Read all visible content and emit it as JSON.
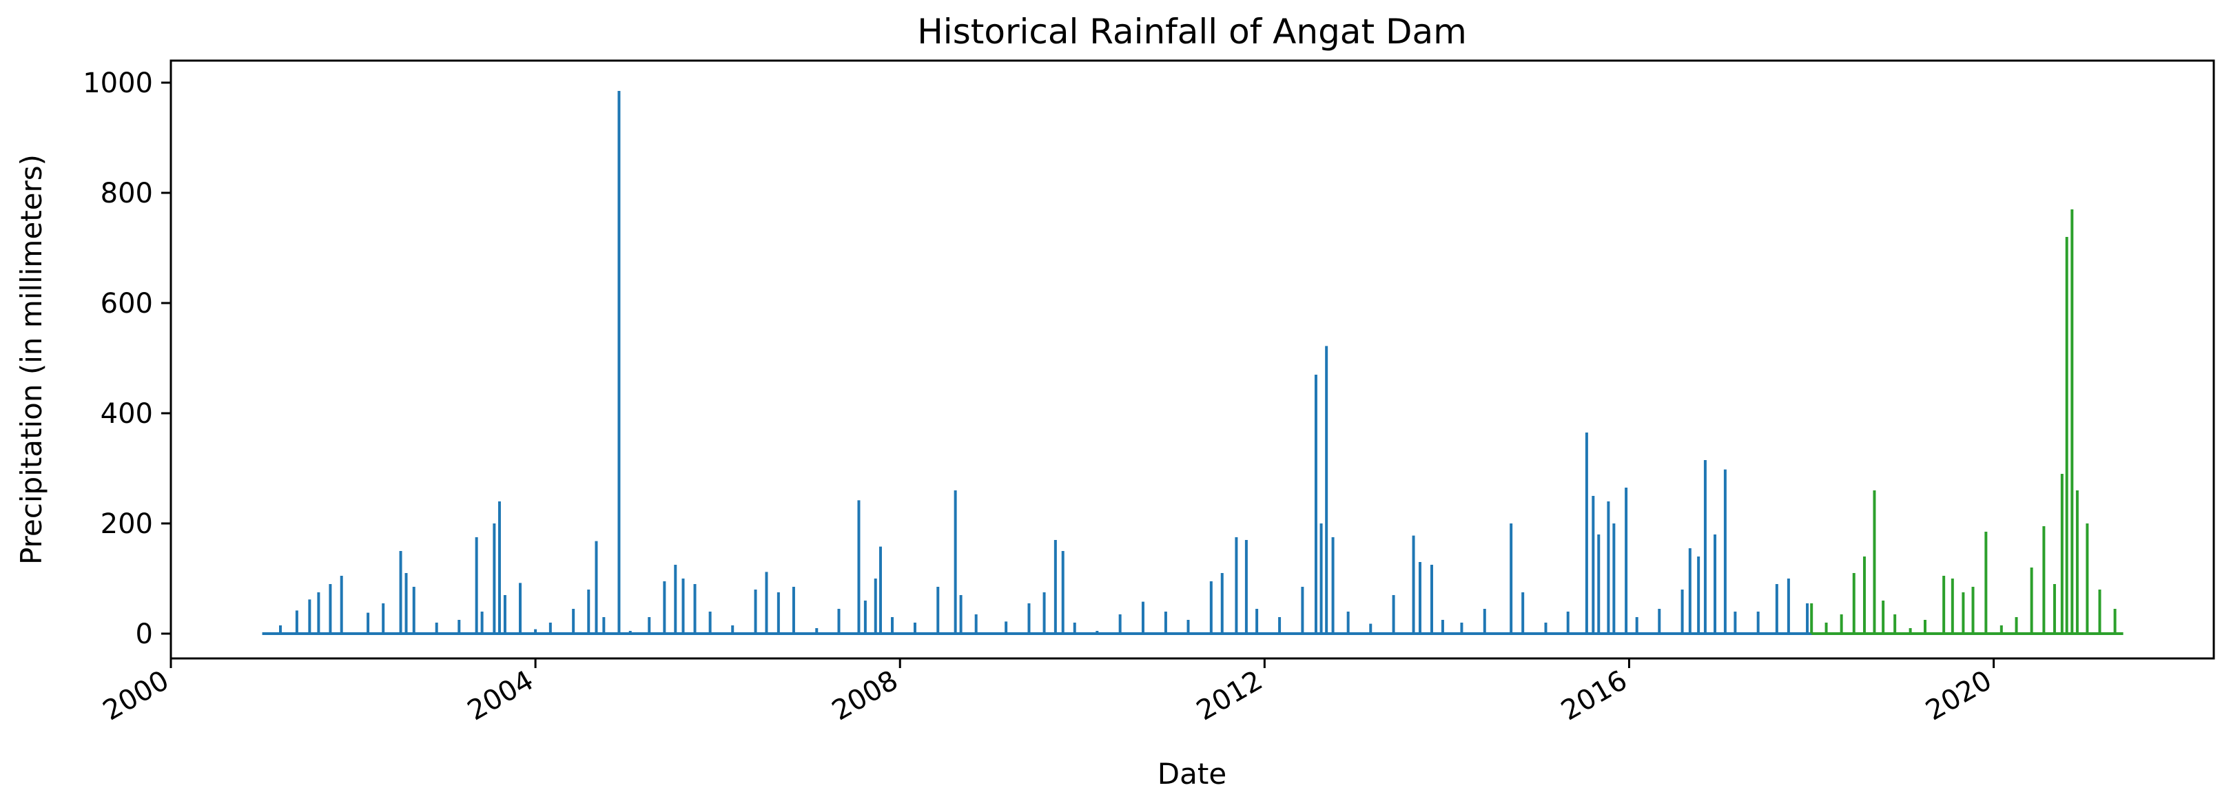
{
  "chart_data": {
    "type": "line",
    "title": "Historical Rainfall of Angat Dam",
    "xlabel": "Date",
    "ylabel": "Precipitation (in millimeters)",
    "xlim": [
      "2000-01-01",
      "2022-06-01"
    ],
    "ylim": [
      -45,
      1040
    ],
    "x_ticks": [
      "2000",
      "2004",
      "2008",
      "2012",
      "2016",
      "2020"
    ],
    "y_ticks": [
      0,
      200,
      400,
      600,
      800,
      1000
    ],
    "legend": "none",
    "grid": false,
    "series": [
      {
        "color": "#1f77b4",
        "points": [
          [
            "2001-01-01",
            0
          ],
          [
            "2001-03-15",
            15
          ],
          [
            "2001-05-20",
            42
          ],
          [
            "2001-07-10",
            62
          ],
          [
            "2001-08-15",
            75
          ],
          [
            "2001-10-01",
            90
          ],
          [
            "2001-11-15",
            105
          ],
          [
            "2002-01-01",
            0
          ],
          [
            "2002-03-01",
            38
          ],
          [
            "2002-05-01",
            55
          ],
          [
            "2002-07-10",
            150
          ],
          [
            "2002-08-01",
            110
          ],
          [
            "2002-09-01",
            85
          ],
          [
            "2002-12-01",
            20
          ],
          [
            "2003-03-01",
            25
          ],
          [
            "2003-05-10",
            175
          ],
          [
            "2003-06-01",
            40
          ],
          [
            "2003-07-20",
            200
          ],
          [
            "2003-08-10",
            240
          ],
          [
            "2003-09-01",
            70
          ],
          [
            "2003-11-01",
            92
          ],
          [
            "2004-01-01",
            8
          ],
          [
            "2004-03-01",
            20
          ],
          [
            "2004-06-01",
            45
          ],
          [
            "2004-08-01",
            80
          ],
          [
            "2004-09-01",
            168
          ],
          [
            "2004-10-01",
            30
          ],
          [
            "2004-12-01",
            985
          ],
          [
            "2005-01-15",
            5
          ],
          [
            "2005-04-01",
            30
          ],
          [
            "2005-06-01",
            95
          ],
          [
            "2005-07-15",
            125
          ],
          [
            "2005-08-15",
            100
          ],
          [
            "2005-10-01",
            90
          ],
          [
            "2005-12-01",
            40
          ],
          [
            "2006-03-01",
            15
          ],
          [
            "2006-06-01",
            80
          ],
          [
            "2006-07-15",
            112
          ],
          [
            "2006-09-01",
            75
          ],
          [
            "2006-11-01",
            85
          ],
          [
            "2007-02-01",
            10
          ],
          [
            "2007-05-01",
            45
          ],
          [
            "2007-07-20",
            242
          ],
          [
            "2007-08-15",
            60
          ],
          [
            "2007-09-25",
            100
          ],
          [
            "2007-10-15",
            158
          ],
          [
            "2007-12-01",
            30
          ],
          [
            "2008-03-01",
            20
          ],
          [
            "2008-06-01",
            85
          ],
          [
            "2008-08-10",
            260
          ],
          [
            "2008-09-01",
            70
          ],
          [
            "2008-11-01",
            35
          ],
          [
            "2009-03-01",
            22
          ],
          [
            "2009-06-01",
            55
          ],
          [
            "2009-08-01",
            75
          ],
          [
            "2009-09-15",
            170
          ],
          [
            "2009-10-15",
            150
          ],
          [
            "2009-12-01",
            20
          ],
          [
            "2010-03-01",
            5
          ],
          [
            "2010-06-01",
            35
          ],
          [
            "2010-09-01",
            58
          ],
          [
            "2010-12-01",
            40
          ],
          [
            "2011-03-01",
            25
          ],
          [
            "2011-06-01",
            95
          ],
          [
            "2011-07-15",
            110
          ],
          [
            "2011-09-10",
            175
          ],
          [
            "2011-10-20",
            170
          ],
          [
            "2011-12-01",
            45
          ],
          [
            "2012-03-01",
            30
          ],
          [
            "2012-06-01",
            85
          ],
          [
            "2012-07-25",
            470
          ],
          [
            "2012-08-15",
            200
          ],
          [
            "2012-09-05",
            522
          ],
          [
            "2012-10-01",
            175
          ],
          [
            "2012-12-01",
            40
          ],
          [
            "2013-03-01",
            18
          ],
          [
            "2013-06-01",
            70
          ],
          [
            "2013-08-20",
            178
          ],
          [
            "2013-09-15",
            130
          ],
          [
            "2013-11-01",
            125
          ],
          [
            "2013-12-15",
            25
          ],
          [
            "2014-03-01",
            20
          ],
          [
            "2014-06-01",
            45
          ],
          [
            "2014-09-15",
            200
          ],
          [
            "2014-11-01",
            75
          ],
          [
            "2015-02-01",
            20
          ],
          [
            "2015-05-01",
            40
          ],
          [
            "2015-07-15",
            365
          ],
          [
            "2015-08-10",
            250
          ],
          [
            "2015-09-01",
            180
          ],
          [
            "2015-10-10",
            240
          ],
          [
            "2015-11-01",
            200
          ],
          [
            "2015-12-20",
            265
          ],
          [
            "2016-02-01",
            30
          ],
          [
            "2016-05-01",
            45
          ],
          [
            "2016-08-01",
            80
          ],
          [
            "2016-09-01",
            155
          ],
          [
            "2016-10-05",
            140
          ],
          [
            "2016-11-01",
            315
          ],
          [
            "2016-12-10",
            180
          ],
          [
            "2017-01-20",
            298
          ],
          [
            "2017-03-01",
            40
          ],
          [
            "2017-06-01",
            40
          ],
          [
            "2017-08-15",
            90
          ],
          [
            "2017-10-01",
            100
          ],
          [
            "2017-12-15",
            55
          ]
        ]
      },
      {
        "color": "#2ca02c",
        "points": [
          [
            "2018-01-01",
            55
          ],
          [
            "2018-03-01",
            20
          ],
          [
            "2018-05-01",
            35
          ],
          [
            "2018-06-20",
            110
          ],
          [
            "2018-08-01",
            140
          ],
          [
            "2018-09-10",
            260
          ],
          [
            "2018-10-15",
            60
          ],
          [
            "2018-12-01",
            35
          ],
          [
            "2019-02-01",
            10
          ],
          [
            "2019-04-01",
            25
          ],
          [
            "2019-06-15",
            105
          ],
          [
            "2019-07-20",
            100
          ],
          [
            "2019-09-01",
            75
          ],
          [
            "2019-10-10",
            85
          ],
          [
            "2019-12-01",
            185
          ],
          [
            "2020-02-01",
            15
          ],
          [
            "2020-04-01",
            30
          ],
          [
            "2020-06-01",
            120
          ],
          [
            "2020-07-20",
            195
          ],
          [
            "2020-09-01",
            90
          ],
          [
            "2020-10-01",
            290
          ],
          [
            "2020-10-20",
            720
          ],
          [
            "2020-11-10",
            770
          ],
          [
            "2020-12-01",
            260
          ],
          [
            "2021-01-10",
            200
          ],
          [
            "2021-03-01",
            80
          ],
          [
            "2021-05-01",
            45
          ]
        ]
      }
    ]
  }
}
